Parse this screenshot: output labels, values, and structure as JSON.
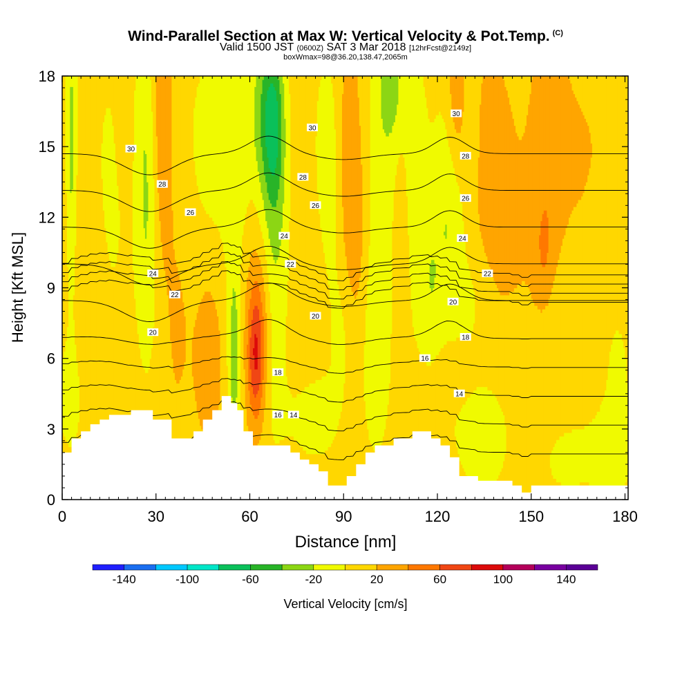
{
  "title": {
    "main": "Wind-Parallel Section at Max W: Vertical Velocity & Pot.Temp.",
    "copyright": "(C)",
    "valid_prefix": "Valid 1500 JST",
    "valid_utc": "(0600Z)",
    "valid_date": "SAT 3 Mar 2018",
    "forecast": "[12hrFcst@2149z]",
    "box_info": "boxWmax=98@36.20,138.47,2065m"
  },
  "chart_data": {
    "type": "heatmap",
    "xlabel": "Distance [nm]",
    "ylabel": "Height [Kft MSL]",
    "xlim": [
      0,
      181
    ],
    "ylim": [
      0,
      18
    ],
    "xticks": [
      0,
      30,
      60,
      90,
      120,
      150,
      180
    ],
    "yticks": [
      0,
      3,
      6,
      9,
      12,
      15,
      18
    ],
    "colorbar": {
      "label": "Vertical Velocity [cm/s]",
      "bounds": [
        -160,
        -140,
        -120,
        -100,
        -80,
        -60,
        -40,
        -20,
        0,
        20,
        40,
        60,
        80,
        100,
        120,
        140,
        160
      ],
      "tick_labels": [
        -140,
        -100,
        -60,
        -20,
        20,
        60,
        100,
        140
      ],
      "colors": [
        "#1f1fff",
        "#1a6ef0",
        "#00c8ff",
        "#00e6c8",
        "#0ac05a",
        "#28b428",
        "#8cd614",
        "#f0fa00",
        "#ffd700",
        "#ffa500",
        "#ff7800",
        "#f04614",
        "#dc0a0a",
        "#b4005a",
        "#7800a0",
        "#5a0096"
      ]
    },
    "background_value": 10,
    "velocity_features": [
      {
        "x": 3,
        "y": 15,
        "sx": 1.2,
        "sy": 5.0,
        "w": -35
      },
      {
        "x": 3,
        "y": 4.5,
        "sx": 4.0,
        "sy": 2.0,
        "w": -18
      },
      {
        "x": 15,
        "y": 13,
        "sx": 5.0,
        "sy": 5.0,
        "w": -14
      },
      {
        "x": 27,
        "y": 11,
        "sx": 2.5,
        "sy": 4.0,
        "w": -28
      },
      {
        "x": 26,
        "y": 16,
        "sx": 3.0,
        "sy": 2.5,
        "w": -15
      },
      {
        "x": 21,
        "y": 15.5,
        "sx": 2.5,
        "sy": 2.0,
        "w": 8
      },
      {
        "x": 32,
        "y": 16,
        "sx": 2.0,
        "sy": 3.5,
        "w": 32
      },
      {
        "x": 37,
        "y": 8,
        "sx": 4.0,
        "sy": 5.0,
        "w": 12
      },
      {
        "x": 47,
        "y": 6,
        "sx": 3.0,
        "sy": 2.5,
        "w": 25
      },
      {
        "x": 46,
        "y": 15,
        "sx": 6.0,
        "sy": 3.5,
        "w": -15
      },
      {
        "x": 56,
        "y": 15,
        "sx": 4.0,
        "sy": 4.0,
        "w": -20
      },
      {
        "x": 55,
        "y": 6,
        "sx": 1.5,
        "sy": 3.0,
        "w": -40
      },
      {
        "x": 62,
        "y": 6,
        "sx": 2.0,
        "sy": 2.0,
        "w": 65
      },
      {
        "x": 64,
        "y": 9,
        "sx": 3.5,
        "sy": 3.0,
        "w": 38
      },
      {
        "x": 67,
        "y": 12.5,
        "sx": 3.5,
        "sy": 5.5,
        "w": -55
      },
      {
        "x": 68,
        "y": 16,
        "sx": 2.0,
        "sy": 2.0,
        "w": -30
      },
      {
        "x": 65,
        "y": 16.5,
        "sx": 3.0,
        "sy": 2.0,
        "w": -25
      },
      {
        "x": 77,
        "y": 11,
        "sx": 4.0,
        "sy": 6.0,
        "w": 6
      },
      {
        "x": 84,
        "y": 15,
        "sx": 3.0,
        "sy": 3.0,
        "w": -18
      },
      {
        "x": 87,
        "y": 11,
        "sx": 3.0,
        "sy": 4.0,
        "w": -10
      },
      {
        "x": 80,
        "y": 3.5,
        "sx": 6.0,
        "sy": 1.5,
        "w": -20
      },
      {
        "x": 92,
        "y": 14,
        "sx": 2.5,
        "sy": 4.0,
        "w": 30
      },
      {
        "x": 95,
        "y": 11,
        "sx": 2.0,
        "sy": 3.0,
        "w": 12
      },
      {
        "x": 104,
        "y": 14,
        "sx": 5.0,
        "sy": 6.0,
        "w": -22
      },
      {
        "x": 105,
        "y": 17.5,
        "sx": 2.5,
        "sy": 1.5,
        "w": -30
      },
      {
        "x": 100,
        "y": 6,
        "sx": 3.0,
        "sy": 3.0,
        "w": -18
      },
      {
        "x": 108,
        "y": 11.5,
        "sx": 2.5,
        "sy": 4.0,
        "w": 16
      },
      {
        "x": 113,
        "y": 14,
        "sx": 3.0,
        "sy": 5.0,
        "w": -15
      },
      {
        "x": 118,
        "y": 9,
        "sx": 3.0,
        "sy": 3.5,
        "w": -25
      },
      {
        "x": 124,
        "y": 13,
        "sx": 3.0,
        "sy": 4.0,
        "w": -30
      },
      {
        "x": 126,
        "y": 17,
        "sx": 2.5,
        "sy": 2.5,
        "w": 35
      },
      {
        "x": 122,
        "y": 5.5,
        "sx": 6.0,
        "sy": 1.0,
        "w": 12
      },
      {
        "x": 130,
        "y": 15.5,
        "sx": 2.0,
        "sy": 3.0,
        "w": -12
      },
      {
        "x": 135,
        "y": 3,
        "sx": 8.0,
        "sy": 2.5,
        "w": -18
      },
      {
        "x": 134,
        "y": 14,
        "sx": 3.5,
        "sy": 5.0,
        "w": 10
      },
      {
        "x": 140,
        "y": 13,
        "sx": 4.0,
        "sy": 5.0,
        "w": 14
      },
      {
        "x": 148,
        "y": 11,
        "sx": 4.0,
        "sy": 5.0,
        "w": 8
      },
      {
        "x": 156,
        "y": 15,
        "sx": 4.0,
        "sy": 4.0,
        "w": 25
      },
      {
        "x": 154,
        "y": 10.5,
        "sx": 2.0,
        "sy": 1.5,
        "w": 20
      },
      {
        "x": 165,
        "y": 15,
        "sx": 4.0,
        "sy": 3.0,
        "w": 8
      },
      {
        "x": 173,
        "y": 12,
        "sx": 5.0,
        "sy": 4.0,
        "w": 12
      },
      {
        "x": 177,
        "y": 5.5,
        "sx": 5.0,
        "sy": 5.0,
        "w": -14
      },
      {
        "x": 170,
        "y": 2,
        "sx": 8.0,
        "sy": 1.2,
        "w": -12
      },
      {
        "x": 160,
        "y": 1.5,
        "sx": 5.0,
        "sy": 1.0,
        "w": -10
      },
      {
        "x": 172,
        "y": 10.5,
        "sx": 3.0,
        "sy": 2.0,
        "w": -14
      },
      {
        "x": 160,
        "y": 7,
        "sx": 4.0,
        "sy": 2.0,
        "w": -8
      },
      {
        "x": 131,
        "y": 8.5,
        "sx": 4.0,
        "sy": 1.5,
        "w": -14
      },
      {
        "x": 90,
        "y": 7,
        "sx": 2.5,
        "sy": 2.0,
        "w": -12
      },
      {
        "x": 8,
        "y": 9,
        "sx": 4.0,
        "sy": 4.0,
        "w": 10
      },
      {
        "x": 15,
        "y": 5,
        "sx": 5.0,
        "sy": 1.5,
        "w": 6
      }
    ],
    "terrain": {
      "x": [
        0,
        3,
        3,
        6,
        6,
        9,
        9,
        12,
        12,
        15,
        15,
        22,
        22,
        29,
        29,
        35,
        35,
        42,
        42,
        45,
        45,
        48,
        48,
        51,
        51,
        54,
        54,
        56,
        56,
        58,
        58,
        61,
        61,
        73,
        73,
        76,
        76,
        79,
        79,
        82,
        82,
        85,
        85,
        91,
        91,
        94,
        94,
        97,
        97,
        100,
        100,
        106,
        106,
        112,
        112,
        118,
        118,
        121,
        121,
        124,
        124,
        127,
        127,
        133,
        133,
        144,
        144,
        147,
        147,
        150,
        150,
        155,
        155,
        160,
        160,
        181
      ],
      "y": [
        2.0,
        2.0,
        2.6,
        2.6,
        2.9,
        2.9,
        3.2,
        3.2,
        3.4,
        3.4,
        3.6,
        3.6,
        3.8,
        3.8,
        3.4,
        3.4,
        2.6,
        2.6,
        2.9,
        2.9,
        3.4,
        3.4,
        3.8,
        3.8,
        4.4,
        4.4,
        4.1,
        4.1,
        3.8,
        3.8,
        2.9,
        2.9,
        2.3,
        2.3,
        2.0,
        2.0,
        1.7,
        1.7,
        1.5,
        1.5,
        1.2,
        1.2,
        0.6,
        0.6,
        1.0,
        1.0,
        1.5,
        1.5,
        2.0,
        2.0,
        2.3,
        2.3,
        2.6,
        2.6,
        2.9,
        2.9,
        2.6,
        2.6,
        2.3,
        2.3,
        1.8,
        1.8,
        1.0,
        1.0,
        0.8,
        0.8,
        0.6,
        0.6,
        0.3,
        0.3,
        0.6,
        0.6,
        0.6,
        0.6,
        0.6,
        0.6
      ]
    },
    "contour_levels": [
      12,
      14,
      16,
      18,
      20,
      22,
      24,
      26,
      28,
      30
    ],
    "contour_labels": [
      {
        "text": "30",
        "x": 22,
        "y": 14.9
      },
      {
        "text": "28",
        "x": 32,
        "y": 13.4
      },
      {
        "text": "26",
        "x": 41,
        "y": 12.2
      },
      {
        "text": "24",
        "x": 29,
        "y": 9.6
      },
      {
        "text": "22",
        "x": 36,
        "y": 8.7
      },
      {
        "text": "20",
        "x": 29,
        "y": 7.1
      },
      {
        "text": "30",
        "x": 80,
        "y": 15.8
      },
      {
        "text": "28",
        "x": 77,
        "y": 13.7
      },
      {
        "text": "26",
        "x": 81,
        "y": 12.5
      },
      {
        "text": "24",
        "x": 71,
        "y": 11.2
      },
      {
        "text": "22",
        "x": 73,
        "y": 10.0
      },
      {
        "text": "20",
        "x": 81,
        "y": 7.8
      },
      {
        "text": "18",
        "x": 69,
        "y": 5.4
      },
      {
        "text": "16",
        "x": 69,
        "y": 3.6
      },
      {
        "text": "14",
        "x": 74,
        "y": 3.6
      },
      {
        "text": "30",
        "x": 126,
        "y": 16.4
      },
      {
        "text": "28",
        "x": 129,
        "y": 14.6
      },
      {
        "text": "26",
        "x": 129,
        "y": 12.8
      },
      {
        "text": "24",
        "x": 128,
        "y": 11.1
      },
      {
        "text": "22",
        "x": 136,
        "y": 9.6
      },
      {
        "text": "20",
        "x": 125,
        "y": 8.4
      },
      {
        "text": "18",
        "x": 129,
        "y": 6.9
      },
      {
        "text": "16",
        "x": 116,
        "y": 6.0
      },
      {
        "text": "14",
        "x": 127,
        "y": 4.5
      }
    ]
  }
}
